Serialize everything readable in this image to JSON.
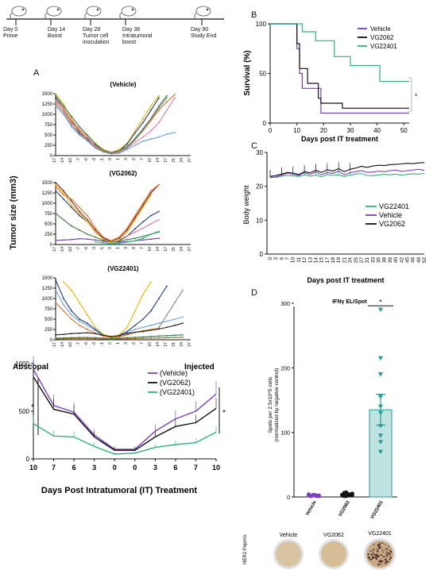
{
  "timeline": [
    {
      "day": "Day 0",
      "label": "Prime"
    },
    {
      "day": "Day 14",
      "label": "Boost"
    },
    {
      "day": "Day 28",
      "label": "Tumor cell inoculation"
    },
    {
      "day": "Day 38",
      "label": "Intratumoral boost"
    },
    {
      "day": "Day 90",
      "label": "Study End"
    }
  ],
  "panel_letters": {
    "a": "A",
    "b": "B",
    "c": "C",
    "d": "D"
  },
  "chart_data": [
    {
      "id": "tumor-vehicle",
      "type": "line",
      "title": "(Vehicle)",
      "ylabel": "Tumor size (mm3)",
      "ylim": [
        0,
        1500
      ],
      "yticks": [
        "0",
        "250",
        "500",
        "750",
        "1000",
        "1250",
        "1500"
      ],
      "xticks": [
        "-17",
        "-14",
        "-10",
        "-7",
        "-6",
        "-3",
        "-1",
        "0",
        "1",
        "3",
        "6",
        "7",
        "10",
        "14",
        "17",
        "21",
        "24",
        "27"
      ],
      "series": [
        {
          "color": "#f0b400",
          "values": [
            1500,
            1250,
            900,
            600,
            500,
            300,
            150,
            80,
            150,
            300,
            600,
            900,
            1200,
            1450,
            null,
            null,
            null,
            null
          ]
        },
        {
          "color": "#1f3f8a",
          "values": [
            1400,
            1150,
            850,
            550,
            420,
            250,
            120,
            60,
            110,
            280,
            550,
            800,
            1100,
            1400,
            null,
            null,
            null,
            null
          ]
        },
        {
          "color": "#3a7d44",
          "values": [
            1450,
            1200,
            950,
            700,
            500,
            280,
            130,
            70,
            120,
            220,
            420,
            650,
            900,
            1200,
            1450,
            null,
            null,
            null
          ]
        },
        {
          "color": "#e07020",
          "values": [
            1300,
            1100,
            800,
            600,
            400,
            200,
            100,
            50,
            90,
            200,
            380,
            600,
            850,
            1100,
            1300,
            1480,
            null,
            null
          ]
        },
        {
          "color": "#6aa0e0",
          "values": [
            1200,
            1000,
            700,
            500,
            350,
            180,
            90,
            40,
            60,
            150,
            250,
            350,
            400,
            450,
            520,
            560,
            null,
            null
          ]
        },
        {
          "color": "#e57a9a",
          "values": [
            1350,
            1150,
            850,
            650,
            450,
            230,
            110,
            45,
            80,
            180,
            320,
            450,
            600,
            800,
            1100,
            1400,
            null,
            null
          ]
        },
        {
          "color": "#888888",
          "values": [
            1250,
            1050,
            750,
            520,
            380,
            190,
            95,
            55,
            100,
            190,
            380,
            620,
            880,
            1150,
            1400,
            null,
            null,
            null
          ]
        }
      ]
    },
    {
      "id": "tumor-vg2062",
      "type": "line",
      "title": "(VG2062)",
      "ylim": [
        0,
        1500
      ],
      "yticks": [
        "0",
        "250",
        "500",
        "750",
        "1000",
        "1250",
        "1500"
      ],
      "xticks": [
        "-17",
        "-14",
        "-10",
        "-7",
        "-6",
        "-3",
        "-1",
        "0",
        "1",
        "3",
        "6",
        "7",
        "10",
        "14",
        "17",
        "21",
        "24",
        "27"
      ],
      "series": [
        {
          "color": "#8a1f1f",
          "values": [
            1500,
            1300,
            1050,
            800,
            600,
            350,
            150,
            80,
            150,
            350,
            650,
            950,
            1250,
            1450,
            null,
            null,
            null,
            null
          ]
        },
        {
          "color": "#e07020",
          "values": [
            1400,
            1200,
            1100,
            900,
            700,
            400,
            180,
            90,
            180,
            400,
            700,
            1000,
            1300,
            1450,
            null,
            null,
            null,
            null
          ]
        },
        {
          "color": "#1f3f8a",
          "values": [
            1300,
            1100,
            900,
            700,
            550,
            300,
            140,
            60,
            100,
            200,
            380,
            550,
            700,
            800,
            null,
            null,
            null,
            null
          ]
        },
        {
          "color": "#3a7d44",
          "values": [
            750,
            600,
            450,
            350,
            250,
            180,
            100,
            60,
            80,
            120,
            150,
            200,
            250,
            300,
            null,
            null,
            null,
            null
          ]
        },
        {
          "color": "#7a3fa0",
          "values": [
            100,
            110,
            120,
            140,
            130,
            110,
            80,
            50,
            60,
            70,
            90,
            110,
            130,
            150,
            null,
            null,
            null,
            null
          ]
        },
        {
          "color": "#2fb37a",
          "values": [
            null,
            null,
            null,
            null,
            null,
            60,
            40,
            20,
            30,
            60,
            90,
            150,
            250,
            320,
            null,
            null,
            null,
            null
          ]
        },
        {
          "color": "#f0b400",
          "values": [
            1450,
            1250,
            950,
            750,
            550,
            300,
            130,
            50,
            110,
            300,
            600,
            900,
            1200,
            null,
            null,
            null,
            null,
            null
          ]
        },
        {
          "color": "#e57a9a",
          "values": [
            null,
            null,
            null,
            null,
            null,
            null,
            null,
            null,
            null,
            200,
            300,
            400,
            500,
            600,
            null,
            null,
            null,
            null
          ]
        }
      ]
    },
    {
      "id": "tumor-vg22401",
      "type": "line",
      "title": "(VG22401)",
      "ylim": [
        0,
        1500
      ],
      "yticks": [
        "0",
        "250",
        "500",
        "750",
        "1000",
        "1250",
        "1500"
      ],
      "xticks": [
        "-17",
        "-14",
        "-10",
        "-7",
        "-6",
        "-3",
        "-1",
        "0",
        "1",
        "3",
        "6",
        "7",
        "10",
        "14",
        "17",
        "21",
        "24",
        "27"
      ],
      "series": [
        {
          "color": "#1f3f8a",
          "values": [
            1450,
            1000,
            700,
            500,
            400,
            250,
            120,
            70,
            110,
            200,
            350,
            500,
            700,
            1000,
            1300,
            null,
            null,
            null
          ]
        },
        {
          "color": "#6aa0e0",
          "values": [
            1200,
            850,
            600,
            450,
            350,
            220,
            100,
            60,
            90,
            170,
            250,
            300,
            350,
            400,
            450,
            500,
            550,
            null
          ]
        },
        {
          "color": "#f0b400",
          "values": [
            null,
            1400,
            1200,
            900,
            600,
            300,
            130,
            60,
            120,
            300,
            700,
            1100,
            1400,
            null,
            null,
            null,
            null,
            null
          ]
        },
        {
          "color": "#888888",
          "values": [
            null,
            null,
            null,
            null,
            null,
            null,
            null,
            null,
            null,
            null,
            null,
            null,
            null,
            300,
            600,
            900,
            1200,
            null
          ]
        },
        {
          "color": "#e07020",
          "values": [
            900,
            700,
            500,
            350,
            250,
            160,
            90,
            50,
            70,
            120,
            180,
            220,
            250,
            280,
            null,
            null,
            null,
            null
          ]
        },
        {
          "color": "#222222",
          "values": [
            120,
            130,
            150,
            160,
            170,
            150,
            110,
            80,
            100,
            150,
            180,
            200,
            230,
            260,
            300,
            350,
            400,
            null
          ]
        },
        {
          "color": "#9a6a2a",
          "values": [
            20,
            25,
            30,
            30,
            30,
            25,
            20,
            15,
            20,
            25,
            30,
            35,
            40,
            45,
            50,
            55,
            60,
            null
          ]
        },
        {
          "color": "#3a7d44",
          "values": [
            40,
            45,
            50,
            55,
            55,
            50,
            40,
            30,
            40,
            50,
            60,
            70,
            80,
            90,
            100,
            110,
            120,
            null
          ]
        }
      ]
    },
    {
      "id": "tumor-mean",
      "type": "line",
      "ylim": [
        0,
        1000
      ],
      "yticks": [
        "0",
        "500",
        "1000"
      ],
      "xticks": [
        "10",
        "7",
        "6",
        "3",
        "0",
        "0",
        "3",
        "6",
        "7",
        "10"
      ],
      "xlabel": "Days Post Intratumoral (IT) Treatment",
      "annotations": {
        "left": "Abscopal",
        "right": "Injected",
        "sig": "*"
      },
      "series": [
        {
          "name": "(Vehicle)",
          "color": "#7a3fbf",
          "values": [
            940,
            560,
            490,
            250,
            100,
            100,
            290,
            420,
            500,
            680
          ]
        },
        {
          "name": "(VG2062)",
          "color": "#111111",
          "values": [
            860,
            520,
            470,
            230,
            90,
            90,
            230,
            340,
            380,
            530
          ]
        },
        {
          "name": "(VG22401)",
          "color": "#2fb37a",
          "values": [
            370,
            240,
            230,
            130,
            50,
            60,
            120,
            150,
            170,
            280
          ]
        }
      ]
    },
    {
      "id": "survival",
      "type": "line",
      "xlabel": "Days post IT treatment",
      "ylabel": "Survival (%)",
      "ylim": [
        0,
        100
      ],
      "yticks": [
        "0",
        "50",
        "100"
      ],
      "xlim": [
        0,
        52
      ],
      "xticks": [
        "0",
        "10",
        "20",
        "30",
        "40",
        "50"
      ],
      "annotations": {
        "sig": "*"
      },
      "series": [
        {
          "name": "Vehicle",
          "color": "#7a3fbf",
          "x": [
            0,
            10,
            11,
            12,
            18,
            19,
            52
          ],
          "y": [
            100,
            75,
            50,
            35,
            35,
            10,
            10
          ]
        },
        {
          "name": "VG2062",
          "color": "#111111",
          "x": [
            0,
            10,
            11,
            14,
            18,
            19,
            27,
            52
          ],
          "y": [
            100,
            80,
            55,
            40,
            25,
            20,
            15,
            15
          ]
        },
        {
          "name": "VG22401",
          "color": "#2fb37a",
          "x": [
            0,
            12,
            17,
            24,
            30,
            41,
            52
          ],
          "y": [
            100,
            92,
            83,
            67,
            58,
            42,
            42
          ]
        }
      ]
    },
    {
      "id": "body-weight",
      "type": "line",
      "xlabel": "Days post IT treatment",
      "ylabel": "Body weight",
      "ylim": [
        0,
        30
      ],
      "yticks": [
        "0",
        "10",
        "20",
        "30"
      ],
      "xticks": [
        "0",
        "3",
        "6",
        "7",
        "10",
        "11",
        "12",
        "13",
        "14",
        "15",
        "17",
        "18",
        "19",
        "21",
        "24",
        "25",
        "27",
        "31",
        "33",
        "35",
        "38",
        "39",
        "40",
        "42",
        "45",
        "46",
        "49",
        "52"
      ],
      "series": [
        {
          "name": "VG22401",
          "color": "#2fb37a",
          "values": [
            22.8,
            22.6,
            23.0,
            23.2,
            23.1,
            22.9,
            23.4,
            23.0,
            23.3,
            22.8,
            23.5,
            23.2,
            23.4,
            22.9,
            23.3,
            23.6,
            23.8,
            23.2,
            23.1,
            23.4,
            23.5,
            23.4,
            23.6,
            23.3,
            23.5,
            23.7,
            23.6,
            23.8
          ]
        },
        {
          "name": "Vehicle",
          "color": "#7a3fbf",
          "values": [
            22.5,
            22.8,
            23.3,
            23.8,
            23.6,
            23.2,
            24.0,
            23.5,
            24.2,
            23.4,
            24.1,
            23.8,
            24.5,
            23.4,
            24.0,
            24.3,
            24.6,
            24.1,
            24.2,
            24.5,
            24.3,
            24.6,
            24.8,
            24.4,
            24.6,
            24.8,
            25.0,
            24.7
          ]
        },
        {
          "name": "VG2062",
          "color": "#111111",
          "values": [
            22.9,
            23.2,
            23.6,
            24.1,
            23.9,
            23.5,
            24.3,
            24.0,
            24.7,
            24.1,
            24.9,
            24.5,
            25.2,
            24.3,
            25.0,
            25.4,
            25.9,
            25.6,
            26.0,
            26.2,
            26.1,
            26.4,
            26.5,
            26.6,
            26.8,
            26.7,
            26.9,
            27.0
          ]
        }
      ]
    },
    {
      "id": "elispot",
      "type": "scatter",
      "title": "IFNγ ELISpot",
      "ylabel": "Spots per 2.5x10^5 cells",
      "ylabel2": "(normalized by negative control)",
      "ylim": [
        0,
        300
      ],
      "yticks": [
        "0",
        "100",
        "200",
        "300"
      ],
      "categories": [
        "Vehicle",
        "VG2062",
        "VG22401"
      ],
      "colors": [
        "#7a3fbf",
        "#111111",
        "#2a9d99"
      ],
      "points": [
        [
          1,
          0,
          2,
          1,
          0,
          1,
          3,
          0,
          1,
          2,
          1,
          0
        ],
        [
          2,
          5,
          0,
          3,
          1,
          4,
          2,
          0,
          6,
          1,
          3,
          2
        ],
        [
          290,
          215,
          190,
          155,
          140,
          130,
          110,
          95,
          85,
          70
        ]
      ],
      "bar": 135,
      "sem": 24,
      "sig": "*"
    }
  ],
  "wells": {
    "row_label": "HER2 Pepmix",
    "labels": [
      "Vehicle",
      "VG2062",
      "VG22401"
    ]
  }
}
